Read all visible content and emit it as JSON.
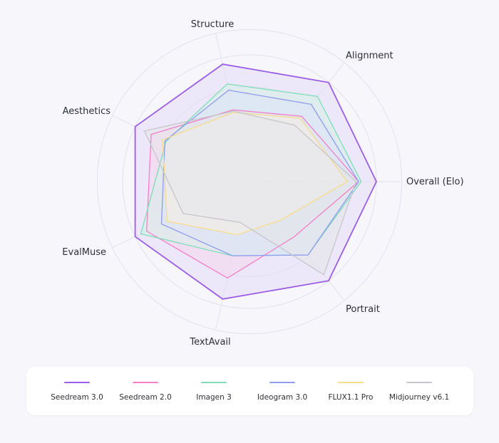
{
  "chart_data": {
    "type": "radar",
    "title": "",
    "axes": [
      "Overall (Elo)",
      "Portrait",
      "TextAvail",
      "EvalMuse",
      "Aesthetics",
      "Structure",
      "Alignment"
    ],
    "rlim": [
      0,
      1
    ],
    "grid": true,
    "legend_position": "bottom",
    "series": [
      {
        "name": "Seedream 3.0",
        "color": "#9b5de5",
        "fill": "#e4dcf8",
        "values": [
          1.0,
          1.0,
          0.95,
          1.0,
          1.0,
          0.95,
          1.0
        ]
      },
      {
        "name": "Seedream 2.0",
        "color": "#f27ec6",
        "fill": "#f8d5ec",
        "values": [
          0.86,
          0.56,
          0.78,
          0.9,
          0.86,
          0.58,
          0.66
        ]
      },
      {
        "name": "Imagen 3",
        "color": "#7fdcb8",
        "fill": "#d6f1e8",
        "values": [
          0.88,
          0.74,
          0.6,
          0.95,
          0.73,
          0.79,
          0.86
        ]
      },
      {
        "name": "Ideogram 3.0",
        "color": "#8f9cf0",
        "fill": "#dde1f8",
        "values": [
          0.86,
          0.74,
          0.6,
          0.77,
          0.74,
          0.74,
          0.78
        ]
      },
      {
        "name": "FLUX1.1 Pro",
        "color": "#f7dc8a",
        "fill": "#f8f0e4",
        "values": [
          0.77,
          0.39,
          0.43,
          0.72,
          0.76,
          0.56,
          0.64
        ]
      },
      {
        "name": "Midjourney v6.1",
        "color": "#c6c6cc",
        "fill": "#e6e6ea",
        "values": [
          0.84,
          0.94,
          0.33,
          0.58,
          0.92,
          0.57,
          0.57
        ]
      }
    ]
  }
}
